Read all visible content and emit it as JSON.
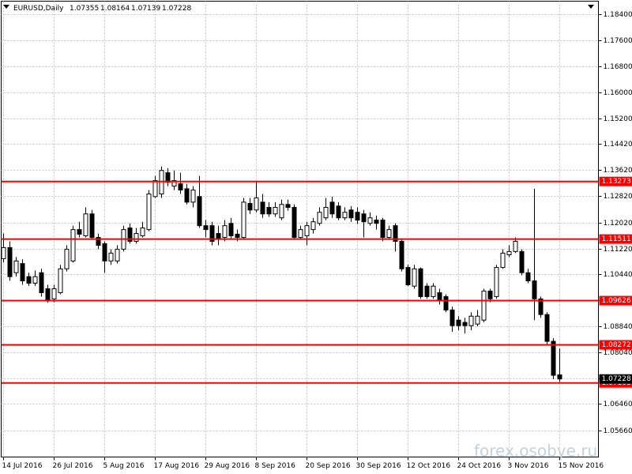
{
  "chart_data": {
    "type": "candlestick",
    "title": "EURUSD,Daily",
    "watermark": "forex.osobye.ru",
    "categories": [
      "14 Jul 2016",
      null,
      null,
      null,
      null,
      null,
      null,
      null,
      "26 Jul 2016",
      null,
      null,
      null,
      null,
      null,
      null,
      null,
      "5 Aug 2016",
      null,
      null,
      null,
      null,
      null,
      null,
      null,
      "17 Aug 2016",
      null,
      null,
      null,
      null,
      null,
      null,
      null,
      "29 Aug 2016",
      null,
      null,
      null,
      null,
      null,
      null,
      null,
      "8 Sep 2016",
      null,
      null,
      null,
      null,
      null,
      null,
      null,
      "20 Sep 2016",
      null,
      null,
      null,
      null,
      null,
      null,
      null,
      "30 Sep 2016",
      null,
      null,
      null,
      null,
      null,
      null,
      null,
      "12 Oct 2016",
      null,
      null,
      null,
      null,
      null,
      null,
      null,
      "24 Oct 2016",
      null,
      null,
      null,
      null,
      null,
      null,
      null,
      "3 Nov 2016",
      null,
      null,
      null,
      null,
      null,
      null,
      null,
      "15 Nov 2016"
    ],
    "open": [
      1.1091,
      1.1125,
      1.1048,
      1.1076,
      1.1036,
      1.1016,
      1.1048,
      1.0999,
      1.0968,
      1.0987,
      1.106,
      1.1084,
      1.118,
      1.1161,
      1.1228,
      1.1156,
      1.1137,
      1.1084,
      1.1084,
      1.112,
      1.1185,
      1.1144,
      1.1161,
      1.118,
      1.1281,
      1.1289,
      1.1354,
      1.1313,
      1.132,
      1.1305,
      1.1264,
      1.1281,
      1.1192,
      1.1192,
      1.1168,
      1.1156,
      1.1199,
      1.1166,
      1.1156,
      1.126,
      1.124,
      1.1264,
      1.1248,
      1.1228,
      1.1216,
      1.1257,
      1.1248,
      1.1156,
      1.1161,
      1.118,
      1.1199,
      1.1216,
      1.1264,
      1.1252,
      1.1216,
      1.124,
      1.1233,
      1.1228,
      1.1199,
      1.1209,
      1.1209,
      1.1156,
      1.1192,
      1.1144,
      1.1064,
      1.1007,
      1.106,
      1.1007,
      1.0975,
      1.0987,
      1.0975,
      1.0934,
      1.0903,
      1.0896,
      1.0886,
      1.0891,
      1.0903,
      1.0992,
      1.0975,
      1.1064,
      1.1103,
      1.1113,
      1.1113,
      1.1048,
      1.1023,
      1.0968,
      1.092,
      1.0838,
      1.07355
    ],
    "high": [
      1.1168,
      1.1144,
      1.1096,
      1.1089,
      1.1048,
      1.1055,
      1.106,
      1.1011,
      1.1011,
      1.1072,
      1.1132,
      1.1192,
      1.1204,
      1.1248,
      1.124,
      1.1168,
      1.1144,
      1.112,
      1.1132,
      1.1192,
      1.1199,
      1.1185,
      1.1204,
      1.1301,
      1.1344,
      1.1373,
      1.1368,
      1.1361,
      1.1354,
      1.132,
      1.1313,
      1.1344,
      1.1209,
      1.1204,
      1.1192,
      1.1209,
      1.1216,
      1.118,
      1.1277,
      1.1277,
      1.133,
      1.1289,
      1.1264,
      1.1264,
      1.1272,
      1.1272,
      1.1257,
      1.1192,
      1.1204,
      1.1216,
      1.1248,
      1.1277,
      1.1281,
      1.1264,
      1.1248,
      1.1252,
      1.1248,
      1.124,
      1.1233,
      1.1223,
      1.1216,
      1.1192,
      1.1199,
      1.1151,
      1.1072,
      1.1072,
      1.1064,
      1.1016,
      1.1016,
      1.0999,
      1.0982,
      1.0944,
      1.0915,
      1.091,
      1.0927,
      1.0934,
      1.0999,
      1.0999,
      1.1072,
      1.112,
      1.1132,
      1.1156,
      1.112,
      1.106,
      1.1305,
      1.0975,
      1.0927,
      1.0848,
      1.08164
    ],
    "low": [
      1.1079,
      1.1023,
      1.1036,
      1.1011,
      1.1007,
      1.1007,
      1.0975,
      1.0956,
      1.0958,
      1.0982,
      1.1052,
      1.1079,
      1.1156,
      1.1156,
      1.1149,
      1.112,
      1.1048,
      1.1072,
      1.1076,
      1.1113,
      1.1137,
      1.1137,
      1.1156,
      1.1175,
      1.1277,
      1.1277,
      1.1313,
      1.1301,
      1.1289,
      1.1257,
      1.1248,
      1.1185,
      1.1156,
      1.1132,
      1.1132,
      1.1144,
      1.1151,
      1.1144,
      1.1151,
      1.1228,
      1.1233,
      1.1216,
      1.1219,
      1.1219,
      1.1209,
      1.1238,
      1.1151,
      1.1151,
      1.1132,
      1.1168,
      1.1192,
      1.1209,
      1.1216,
      1.1209,
      1.1209,
      1.1204,
      1.1197,
      1.1156,
      1.1192,
      1.118,
      1.1144,
      1.1149,
      1.1113,
      1.1052,
      1.1007,
      1.0999,
      1.0968,
      1.0968,
      1.0968,
      1.0951,
      1.0927,
      1.0867,
      1.0872,
      1.0862,
      1.0872,
      1.0884,
      1.0896,
      1.0958,
      1.0968,
      1.106,
      1.1096,
      1.1108,
      1.104,
      1.1016,
      1.0903,
      1.091,
      1.0828,
      1.0722,
      1.07139
    ],
    "close": [
      1.1125,
      1.1036,
      1.1084,
      1.1023,
      1.1016,
      1.1036,
      1.0987,
      1.0963,
      1.0999,
      1.106,
      1.112,
      1.118,
      1.1166,
      1.1228,
      1.1156,
      1.1132,
      1.1084,
      1.1108,
      1.112,
      1.118,
      1.1144,
      1.1168,
      1.1185,
      1.1289,
      1.133,
      1.1361,
      1.1325,
      1.133,
      1.1301,
      1.1264,
      1.1301,
      1.1192,
      1.118,
      1.1144,
      1.1151,
      1.1192,
      1.1161,
      1.1156,
      1.1264,
      1.124,
      1.1277,
      1.1228,
      1.1228,
      1.1248,
      1.1257,
      1.1248,
      1.1156,
      1.118,
      1.1192,
      1.1204,
      1.1233,
      1.1248,
      1.1228,
      1.1216,
      1.1233,
      1.1216,
      1.1209,
      1.1204,
      1.1216,
      1.1199,
      1.1156,
      1.118,
      1.1144,
      1.106,
      1.1011,
      1.106,
      1.0975,
      1.0975,
      1.1007,
      1.0963,
      1.0934,
      1.0886,
      1.0886,
      1.0886,
      1.0915,
      1.0915,
      1.0992,
      1.0968,
      1.1064,
      1.1108,
      1.1113,
      1.1144,
      1.1048,
      1.1023,
      1.0968,
      1.092,
      1.0838,
      1.0734,
      1.07228
    ],
    "up_color": "#ffffff",
    "down_color": "#000000",
    "levels": [
      1.13273,
      1.11511,
      1.09626,
      1.08272,
      1.07108
    ],
    "level_color": "#ff0000",
    "ylim": [
      1.0484,
      1.1879
    ],
    "yticks": [
      {
        "value": 1.184,
        "label": "1.18400"
      },
      {
        "value": 1.176,
        "label": "1.17600"
      },
      {
        "value": 1.168,
        "label": "1.16800"
      },
      {
        "value": 1.16,
        "label": "1.16000"
      },
      {
        "value": 1.152,
        "label": "1.15200"
      },
      {
        "value": 1.1442,
        "label": "1.14420"
      },
      {
        "value": 1.1362,
        "label": "1.13620"
      },
      {
        "value": 1.1282,
        "label": "1.12820"
      },
      {
        "value": 1.1202,
        "label": "1.12020"
      },
      {
        "value": 1.1122,
        "label": "1.11220"
      },
      {
        "value": 1.1044,
        "label": "1.10440"
      },
      {
        "value": 1.0964,
        "label": "1.09640"
      },
      {
        "value": 1.0884,
        "label": "1.08840"
      },
      {
        "value": 1.0804,
        "label": "1.08040"
      },
      {
        "value": 1.0724,
        "label": "1.07240"
      },
      {
        "value": 1.0646,
        "label": "1.06460"
      },
      {
        "value": 1.0566,
        "label": "1.05660"
      }
    ],
    "grid": true
  }
}
